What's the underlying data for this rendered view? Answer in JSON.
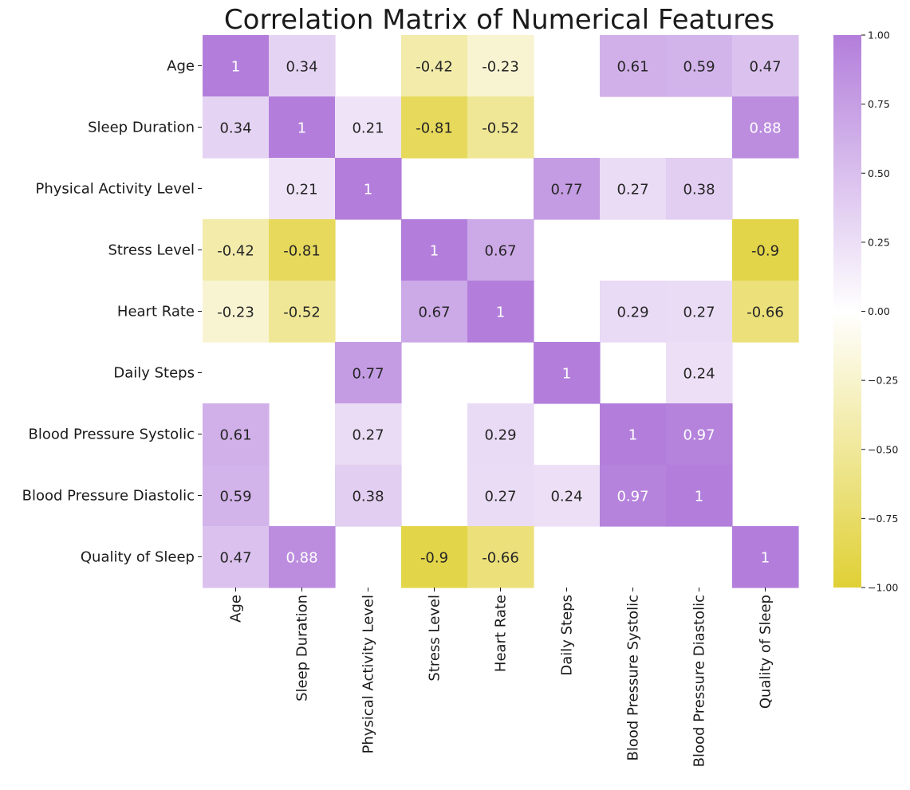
{
  "chart_data": {
    "type": "heatmap",
    "title": "Correlation Matrix of Numerical Features",
    "row_labels": [
      "Age",
      "Sleep Duration",
      "Physical Activity Level",
      "Stress Level",
      "Heart Rate",
      "Daily Steps",
      "Blood Pressure Systolic",
      "Blood Pressure Diastolic",
      "Quality of Sleep"
    ],
    "col_labels": [
      "Age",
      "Sleep Duration",
      "Physical Activity Level",
      "Stress Level",
      "Heart Rate",
      "Daily Steps",
      "Blood Pressure Systolic",
      "Blood Pressure Diastolic",
      "Quality of Sleep"
    ],
    "values": [
      [
        1,
        0.34,
        null,
        -0.42,
        -0.23,
        null,
        0.61,
        0.59,
        0.47
      ],
      [
        0.34,
        1,
        0.21,
        -0.81,
        -0.52,
        null,
        null,
        null,
        0.88
      ],
      [
        null,
        0.21,
        1,
        null,
        null,
        0.77,
        0.27,
        0.38,
        null
      ],
      [
        -0.42,
        -0.81,
        null,
        1,
        0.67,
        null,
        null,
        null,
        -0.9
      ],
      [
        -0.23,
        -0.52,
        null,
        0.67,
        1,
        null,
        0.29,
        0.27,
        -0.66
      ],
      [
        null,
        null,
        0.77,
        null,
        null,
        1,
        null,
        0.24,
        null
      ],
      [
        0.61,
        null,
        0.27,
        null,
        0.29,
        null,
        1,
        0.97,
        null
      ],
      [
        0.59,
        null,
        0.38,
        null,
        0.27,
        0.24,
        0.97,
        1,
        null
      ],
      [
        0.47,
        0.88,
        null,
        -0.9,
        -0.66,
        null,
        null,
        null,
        1
      ]
    ],
    "vmin": -1,
    "vmax": 1,
    "colormap": {
      "low": "#e0d035",
      "mid": "#ffffff",
      "high": "#b37edb"
    },
    "colorbar_ticks": [
      "1.00",
      "0.75",
      "0.50",
      "0.25",
      "0.00",
      "−0.25",
      "−0.50",
      "−0.75",
      "−1.00"
    ],
    "colorbar_tick_values": [
      1,
      0.75,
      0.5,
      0.25,
      0,
      -0.25,
      -0.5,
      -0.75,
      -1
    ],
    "annotation_colors": {
      "dark": "#262626",
      "light": "#ffffff"
    }
  }
}
